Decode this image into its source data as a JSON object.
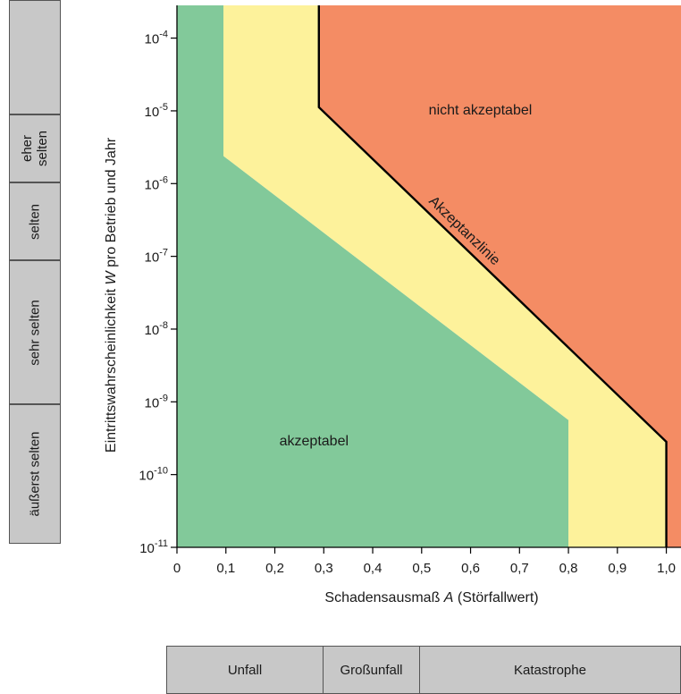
{
  "chart_data": {
    "type": "area",
    "xlabel_main": "Schadensausmaß ",
    "xlabel_var": "A",
    "xlabel_suffix": " (Störfallwert)",
    "ylabel_main": "Eintrittswahrscheinlichkeit ",
    "ylabel_var": "W",
    "ylabel_suffix": " pro Betrieb und Jahr",
    "xlim": [
      0,
      1.03
    ],
    "ylog_exponents": [
      -11,
      -3.55
    ],
    "x_tick_labels": [
      "0",
      "0,1",
      "0,2",
      "0,3",
      "0,4",
      "0,5",
      "0,6",
      "0,7",
      "0,8",
      "0,9",
      "1,0"
    ],
    "x_tick_values": [
      0,
      0.1,
      0.2,
      0.3,
      0.4,
      0.5,
      0.6,
      0.7,
      0.8,
      0.9,
      1.0
    ],
    "y_tick_exponents": [
      -11,
      -10,
      -9,
      -8,
      -7,
      -6,
      -5,
      -4
    ],
    "y_tick_base": "10",
    "regions": [
      {
        "name": "akzeptabel",
        "color": "#82c99a",
        "polygon": [
          [
            0,
            -11
          ],
          [
            0,
            -3.55
          ],
          [
            0.095,
            -3.55
          ],
          [
            0.095,
            -5.62
          ],
          [
            0.8,
            -9.25
          ],
          [
            0.8,
            -11
          ]
        ]
      },
      {
        "name": "tolerance",
        "color": "#fdf29b",
        "polygon": [
          [
            0.095,
            -3.55
          ],
          [
            0.29,
            -3.55
          ],
          [
            0.29,
            -4.95
          ],
          [
            1.0,
            -9.55
          ],
          [
            1.0,
            -11
          ],
          [
            0.8,
            -11
          ],
          [
            0.8,
            -9.25
          ],
          [
            0.095,
            -5.62
          ]
        ]
      },
      {
        "name": "nicht akzeptabel",
        "color": "#f48c64",
        "polygon": [
          [
            0.29,
            -3.55
          ],
          [
            1.03,
            -3.55
          ],
          [
            1.03,
            -11
          ],
          [
            1.0,
            -11
          ],
          [
            1.0,
            -9.55
          ],
          [
            0.29,
            -4.95
          ]
        ]
      }
    ],
    "acceptance_line": {
      "label": "Akzeptanzlinie",
      "points": [
        [
          0.29,
          -3.55
        ],
        [
          0.29,
          -4.95
        ],
        [
          1.0,
          -9.55
        ],
        [
          1.0,
          -11
        ]
      ]
    },
    "annotations": [
      {
        "text": "nicht akzeptabel",
        "x": 0.62,
        "y": -5.05
      },
      {
        "text": "akzeptabel",
        "x": 0.28,
        "y": -9.6
      }
    ]
  },
  "side_scale": [
    {
      "label": "eher selten",
      "lines": [
        "eher",
        "selten"
      ]
    },
    {
      "label": "selten",
      "lines": [
        "selten"
      ]
    },
    {
      "label": "sehr selten",
      "lines": [
        "sehr selten"
      ]
    },
    {
      "label": "äußerst selten",
      "lines": [
        "äußerst selten"
      ]
    }
  ],
  "bottom_scale": [
    {
      "label": "Unfall"
    },
    {
      "label": "Großunfall"
    },
    {
      "label": "Katastrophe"
    }
  ]
}
